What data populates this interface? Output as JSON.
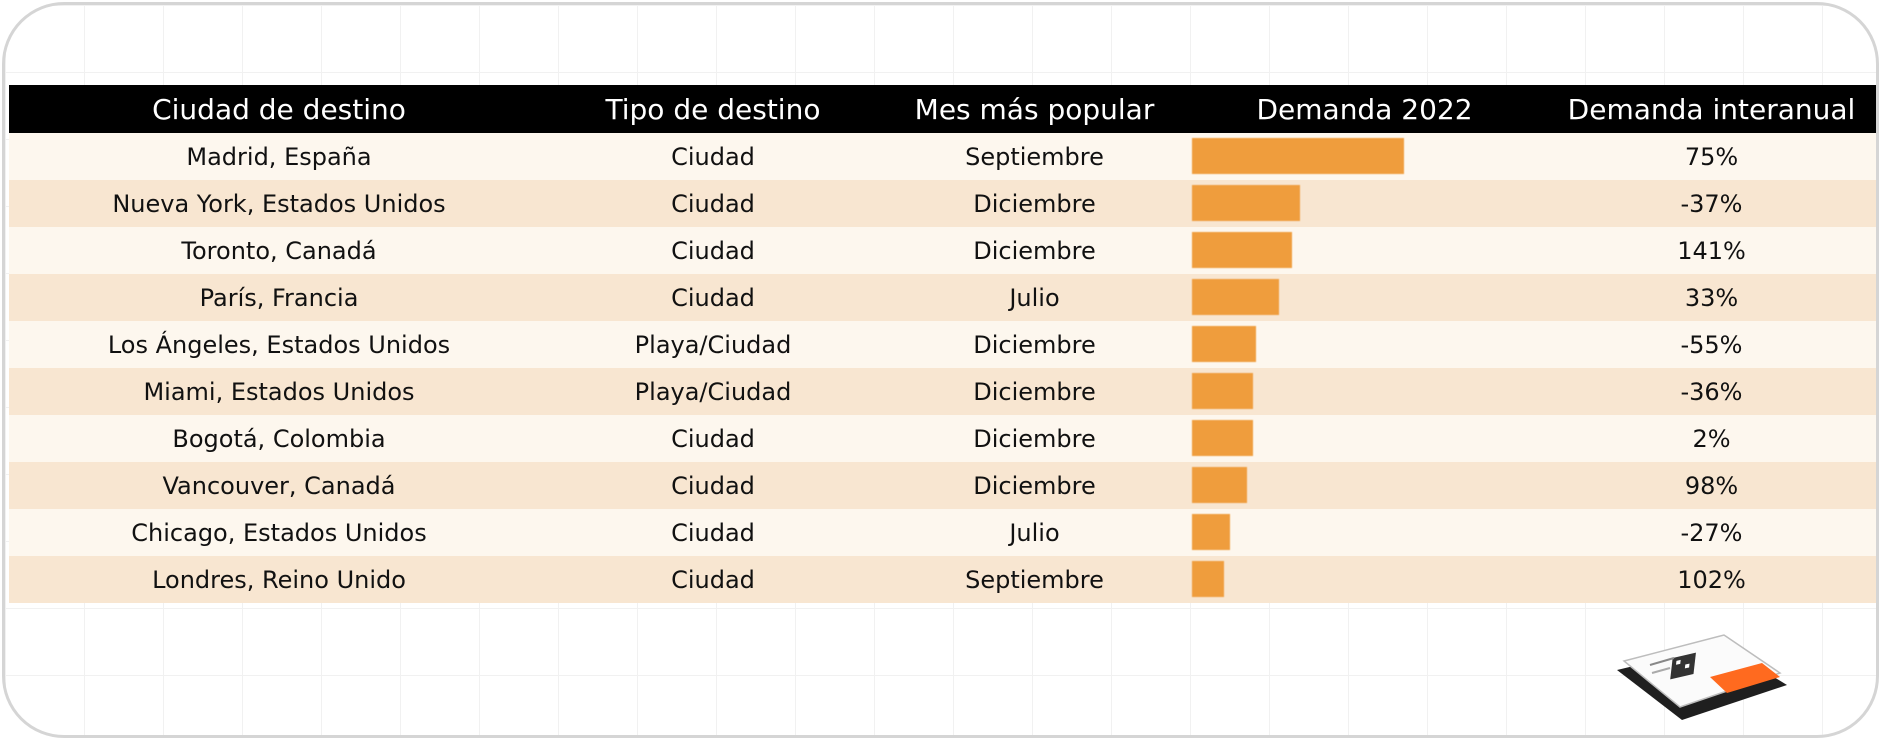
{
  "headers": {
    "city": "Ciudad de destino",
    "type": "Tipo de destino",
    "month": "Mes más popular",
    "demand": "Demanda 2022",
    "yoy": "Demanda interanual"
  },
  "rows": [
    {
      "city": "Madrid, España",
      "type": "Ciudad",
      "month": "Septiembre",
      "yoy": "75%"
    },
    {
      "city": "Nueva York, Estados Unidos",
      "type": "Ciudad",
      "month": "Diciembre",
      "yoy": "-37%"
    },
    {
      "city": "Toronto, Canadá",
      "type": "Ciudad",
      "month": "Diciembre",
      "yoy": "141%"
    },
    {
      "city": "París, Francia",
      "type": "Ciudad",
      "month": "Julio",
      "yoy": "33%"
    },
    {
      "city": "Los Ángeles, Estados Unidos",
      "type": "Playa/Ciudad",
      "month": "Diciembre",
      "yoy": "-55%"
    },
    {
      "city": "Miami, Estados Unidos",
      "type": "Playa/Ciudad",
      "month": "Diciembre",
      "yoy": "-36%"
    },
    {
      "city": "Bogotá, Colombia",
      "type": "Ciudad",
      "month": "Diciembre",
      "yoy": "2%"
    },
    {
      "city": "Vancouver, Canadá",
      "type": "Ciudad",
      "month": "Diciembre",
      "yoy": "98%"
    },
    {
      "city": "Chicago, Estados Unidos",
      "type": "Ciudad",
      "month": "Julio",
      "yoy": "-27%"
    },
    {
      "city": "Londres, Reino Unido",
      "type": "Ciudad",
      "month": "Septiembre",
      "yoy": "102%"
    }
  ],
  "chart_data": {
    "type": "bar",
    "orientation": "horizontal",
    "categories": [
      "Madrid, España",
      "Nueva York, Estados Unidos",
      "Toronto, Canadá",
      "París, Francia",
      "Los Ángeles, Estados Unidos",
      "Miami, Estados Unidos",
      "Bogotá, Colombia",
      "Vancouver, Canadá",
      "Chicago, Estados Unidos",
      "Londres, Reino Unido"
    ],
    "values": [
      1.0,
      0.51,
      0.47,
      0.41,
      0.3,
      0.29,
      0.29,
      0.26,
      0.18,
      0.15
    ],
    "title": "Demanda 2022",
    "xlim": [
      0,
      1
    ],
    "grid": false,
    "legend": "none"
  },
  "colors": {
    "bar": "#ef9d3d",
    "header_bg": "#000000",
    "row_light": "#fdf7ee",
    "row_dark": "#f8e6d1"
  },
  "decorations": {
    "ticket_icon": "boarding-pass-icon"
  }
}
